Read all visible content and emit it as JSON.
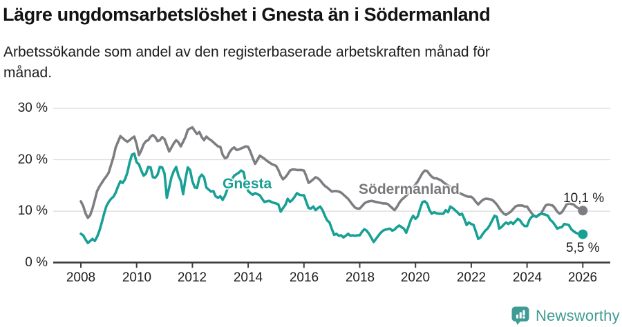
{
  "header": {
    "title": "Lägre ungdomsarbetslöshet i Gnesta än i Södermanland",
    "subtitle_lines": [
      "Arbetssökande som andel av den registerbaserade arbetskraften månad för",
      "månad."
    ]
  },
  "chart_data": {
    "type": "line",
    "unit": "%",
    "x_start_year": 2008,
    "x_end_year": 2026,
    "points_per_year": 12,
    "ylim": [
      0,
      30
    ],
    "grid": true,
    "legend_position": "inline-labels-on-lines",
    "x_tick_years": [
      2008,
      2010,
      2012,
      2014,
      2016,
      2018,
      2020,
      2022,
      2024,
      2026
    ],
    "x_tick_labels": [
      "2008",
      "2010",
      "2012",
      "2014",
      "2016",
      "2018",
      "2020",
      "2022",
      "2024",
      "2026"
    ],
    "y_tick_values": [
      0,
      10,
      20,
      30
    ],
    "y_tick_labels": [
      "0 %",
      "10 %",
      "20 %",
      "30 %"
    ],
    "series": [
      {
        "name": "Södermanland",
        "color": "#7d7e82",
        "end_label": "10,1 %",
        "end_value": 10.1,
        "values": [
          11.9,
          11.0,
          9.6,
          8.7,
          9.2,
          10.5,
          12.2,
          13.9,
          14.8,
          15.5,
          16.2,
          16.8,
          17.5,
          19.0,
          20.5,
          22.4,
          23.5,
          24.6,
          24.2,
          23.8,
          23.5,
          23.8,
          24.2,
          24.5,
          23.0,
          20.9,
          21.8,
          23.0,
          23.6,
          23.8,
          24.5,
          24.8,
          24.4,
          23.6,
          23.8,
          24.4,
          24.0,
          22.8,
          21.6,
          22.4,
          23.2,
          23.8,
          23.4,
          22.6,
          23.5,
          24.4,
          25.8,
          26.1,
          26.3,
          25.6,
          25.0,
          25.4,
          24.4,
          23.8,
          24.5,
          24.1,
          23.8,
          23.4,
          23.0,
          22.6,
          22.5,
          21.0,
          20.3,
          20.5,
          21.5,
          22.1,
          22.4,
          21.9,
          22.0,
          22.2,
          22.4,
          22.6,
          22.5,
          21.5,
          20.3,
          19.2,
          20.0,
          20.8,
          20.5,
          20.2,
          19.8,
          19.5,
          19.2,
          19.0,
          18.8,
          18.0,
          16.9,
          16.2,
          16.6,
          17.2,
          17.9,
          18.1,
          18.1,
          18.0,
          18.0,
          18.0,
          17.9,
          16.8,
          15.5,
          15.8,
          16.2,
          16.6,
          16.4,
          16.0,
          15.4,
          14.9,
          14.6,
          14.2,
          13.8,
          13.9,
          13.9,
          13.8,
          13.6,
          13.2,
          12.8,
          12.4,
          11.8,
          11.2,
          10.7,
          10.5,
          10.5,
          11.0,
          11.5,
          11.8,
          11.9,
          12.0,
          11.9,
          11.8,
          11.7,
          11.6,
          11.5,
          11.5,
          11.4,
          11.0,
          10.6,
          10.2,
          10.8,
          11.6,
          12.2,
          12.6,
          13.0,
          13.5,
          14.0,
          14.6,
          15.2,
          15.8,
          16.6,
          17.4,
          17.9,
          17.8,
          17.2,
          16.7,
          16.4,
          16.4,
          16.2,
          16.0,
          15.6,
          15.3,
          15.0,
          14.7,
          14.4,
          14.1,
          13.8,
          13.5,
          13.3,
          13.1,
          12.9,
          12.8,
          12.8,
          12.4,
          11.8,
          11.3,
          11.8,
          12.2,
          12.4,
          12.4,
          12.3,
          12.2,
          11.8,
          11.3,
          10.6,
          10.0,
          9.5,
          9.3,
          9.6,
          9.9,
          10.4,
          10.9,
          11.1,
          11.1,
          11.1,
          10.9,
          10.9,
          10.2,
          9.6,
          9.1,
          8.9,
          9.2,
          9.5,
          10.3,
          11.1,
          11.3,
          11.2,
          11.1,
          10.6,
          9.9,
          9.5,
          9.8,
          10.5,
          11.3,
          11.5,
          11.4,
          11.3,
          10.9,
          10.6,
          10.3,
          10.1
        ]
      },
      {
        "name": "Gnesta",
        "color": "#18a095",
        "end_label": "5,5 %",
        "end_value": 5.5,
        "values": [
          5.6,
          5.3,
          4.5,
          3.8,
          4.2,
          4.6,
          4.2,
          5.0,
          6.2,
          7.8,
          9.5,
          11.0,
          11.8,
          12.4,
          12.8,
          13.6,
          14.8,
          15.8,
          15.5,
          16.2,
          17.5,
          19.5,
          21.0,
          21.2,
          19.5,
          19.1,
          17.9,
          16.9,
          17.3,
          18.6,
          18.5,
          16.6,
          16.5,
          17.1,
          18.6,
          18.5,
          17.3,
          12.6,
          14.6,
          16.6,
          17.8,
          18.6,
          16.9,
          15.9,
          13.3,
          16.2,
          18.5,
          18.0,
          15.8,
          14.6,
          14.5,
          16.5,
          17.1,
          16.6,
          14.6,
          14.2,
          13.8,
          13.9,
          12.9,
          12.6,
          12.9,
          12.2,
          13.0,
          14.2,
          15.1,
          16.2,
          16.9,
          17.2,
          17.5,
          17.9,
          17.6,
          15.5,
          13.9,
          13.5,
          13.2,
          13.5,
          13.3,
          13.1,
          12.4,
          11.8,
          11.9,
          12.0,
          11.8,
          11.6,
          11.5,
          11.3,
          9.9,
          10.6,
          11.2,
          12.4,
          11.8,
          12.2,
          12.8,
          13.5,
          13.2,
          13.1,
          13.1,
          11.8,
          10.6,
          10.5,
          10.9,
          10.2,
          10.6,
          10.9,
          10.2,
          9.1,
          8.2,
          7.8,
          6.5,
          5.4,
          5.6,
          5.2,
          5.3,
          4.9,
          5.2,
          5.6,
          5.2,
          5.3,
          5.2,
          5.3,
          5.3,
          6.0,
          6.5,
          6.2,
          5.6,
          4.8,
          4.0,
          4.6,
          5.2,
          5.8,
          6.2,
          6.4,
          6.5,
          6.6,
          6.2,
          6.4,
          6.9,
          7.2,
          6.9,
          6.6,
          5.8,
          7.0,
          8.3,
          9.1,
          8.5,
          9.0,
          10.5,
          11.8,
          11.9,
          11.5,
          10.2,
          9.5,
          9.8,
          9.6,
          9.5,
          9.5,
          9.5,
          10.2,
          9.8,
          10.9,
          10.6,
          10.2,
          9.8,
          9.3,
          9.5,
          8.5,
          7.3,
          7.8,
          7.5,
          7.3,
          6.0,
          4.6,
          4.9,
          5.6,
          6.2,
          6.6,
          7.3,
          8.2,
          9.1,
          8.9,
          6.6,
          6.9,
          7.4,
          7.8,
          7.5,
          7.9,
          7.5,
          8.0,
          8.5,
          8.2,
          7.5,
          7.1,
          7.1,
          8.3,
          8.9,
          9.1,
          8.9,
          9.3,
          9.5,
          9.4,
          9.3,
          9.1,
          8.3,
          7.9,
          7.3,
          6.6,
          6.8,
          6.9,
          7.5,
          7.4,
          7.3,
          6.5,
          6.1,
          5.8,
          5.6,
          5.5,
          5.5
        ]
      }
    ]
  },
  "colors": {
    "gridline": "#dadada",
    "axis": "#3d3d3d",
    "tick_text": "#202020",
    "background": "#ffffff"
  },
  "footer": {
    "brand": "Newsworthy",
    "brand_color": "#3f9b94"
  }
}
